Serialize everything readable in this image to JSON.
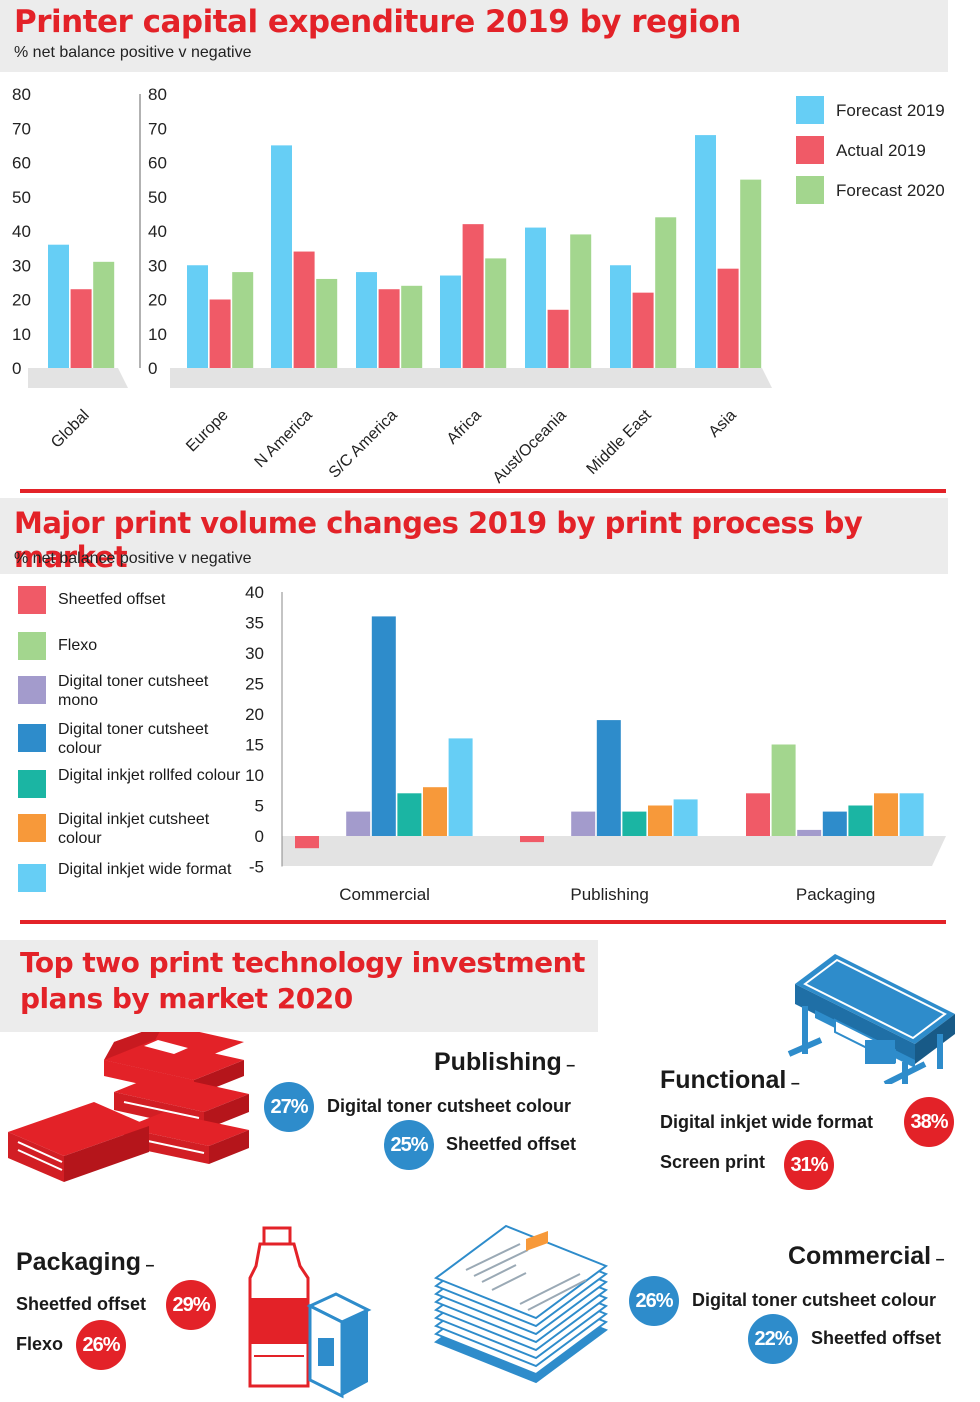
{
  "section1": {
    "title": "Printer capital expenditure 2019 by region",
    "subtitle": "% net balance positive v negative"
  },
  "section2": {
    "title": "Major print volume changes 2019 by print process by market",
    "subtitle": "% net balance positive v negative"
  },
  "section3": {
    "title_line1": "Top two print technology investment",
    "title_line2": "plans by market 2020",
    "markets": [
      {
        "name": "Publishing",
        "dash": "–",
        "items": [
          {
            "label": "Digital toner cutsheet colour",
            "pct": "27%"
          },
          {
            "label": "Sheetfed offset",
            "pct": "25%"
          }
        ]
      },
      {
        "name": "Functional",
        "dash": "–",
        "items": [
          {
            "label": "Digital inkjet wide format",
            "pct": "38%"
          },
          {
            "label": "Screen print",
            "pct": "31%"
          }
        ]
      },
      {
        "name": "Packaging",
        "dash": "–",
        "items": [
          {
            "label": "Sheetfed offset",
            "pct": "29%"
          },
          {
            "label": "Flexo",
            "pct": "26%"
          }
        ]
      },
      {
        "name": "Commercial",
        "dash": "–",
        "items": [
          {
            "label": "Digital toner cutsheet colour",
            "pct": "26%"
          },
          {
            "label": "Sheetfed offset",
            "pct": "22%"
          }
        ]
      }
    ]
  },
  "colors": {
    "accent_red": "#e32228",
    "badge_blue": "#2e8ccb",
    "badge_red": "#e32228",
    "forecast_2019": "#66cef5",
    "actual_2019": "#f05a67",
    "forecast_2020": "#a3d68e",
    "sheetfed_offset": "#f05a67",
    "flexo": "#a3d68e",
    "toner_mono": "#a39bcc",
    "toner_colour": "#2e8ccb",
    "inkjet_rollfed": "#1bb5a3",
    "inkjet_cutsheet": "#f7993a",
    "inkjet_wide": "#66cef5"
  },
  "icons": [
    "books-icon",
    "wide-format-printer-icon",
    "bottle-and-carton-icon",
    "paper-stack-icon"
  ],
  "chart_data": [
    {
      "type": "bar",
      "title": "Printer capital expenditure 2019 by region",
      "subtitle": "% net balance positive v negative",
      "ylim": [
        0,
        80
      ],
      "yticks": [
        0,
        10,
        20,
        30,
        40,
        50,
        60,
        70,
        80
      ],
      "categories": [
        "Global",
        "Europe",
        "N America",
        "S/C America",
        "Africa",
        "Aust/Oceania",
        "Middle East",
        "Asia"
      ],
      "series": [
        {
          "name": "Forecast 2019",
          "values": [
            36,
            30,
            65,
            28,
            27,
            41,
            30,
            68
          ]
        },
        {
          "name": "Actual 2019",
          "values": [
            23,
            20,
            34,
            23,
            42,
            17,
            22,
            29
          ]
        },
        {
          "name": "Forecast 2020",
          "values": [
            31,
            28,
            26,
            24,
            32,
            39,
            44,
            55
          ]
        }
      ],
      "legend_position": "top-right"
    },
    {
      "type": "bar",
      "title": "Major print volume changes 2019 by print process by market",
      "subtitle": "% net balance positive v negative",
      "ylim": [
        -5,
        40
      ],
      "yticks": [
        -5,
        0,
        5,
        10,
        15,
        20,
        25,
        30,
        35,
        40
      ],
      "categories": [
        "Commercial",
        "Publishing",
        "Packaging"
      ],
      "series": [
        {
          "name": "Sheetfed offset",
          "values": [
            -2,
            -1,
            7
          ]
        },
        {
          "name": "Flexo",
          "values": [
            0,
            0,
            15
          ]
        },
        {
          "name": "Digital toner cutsheet mono",
          "values": [
            4,
            4,
            1
          ]
        },
        {
          "name": "Digital toner cutsheet colour",
          "values": [
            36,
            19,
            4
          ]
        },
        {
          "name": "Digital inkjet rollfed colour",
          "values": [
            7,
            4,
            5
          ]
        },
        {
          "name": "Digital inkjet cutsheet colour",
          "values": [
            8,
            5,
            7
          ]
        },
        {
          "name": "Digital inkjet wide format",
          "values": [
            16,
            6,
            7
          ]
        }
      ],
      "legend_position": "left"
    }
  ]
}
